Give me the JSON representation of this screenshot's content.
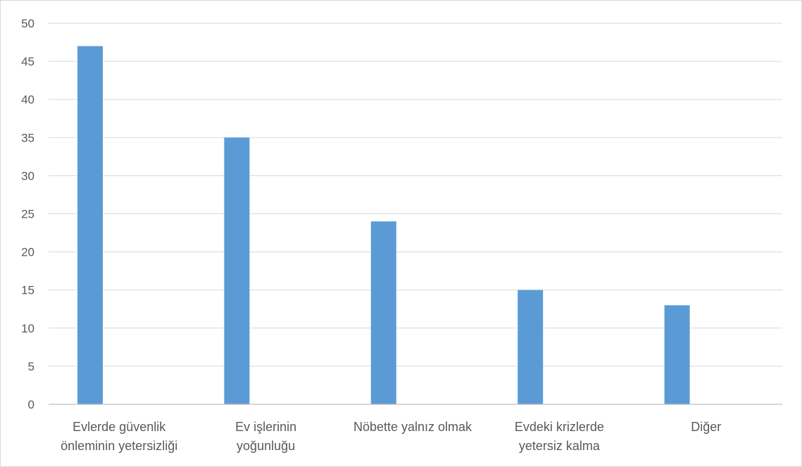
{
  "chart_data": {
    "type": "bar",
    "title": "",
    "xlabel": "",
    "ylabel": "",
    "ylim": [
      0,
      50
    ],
    "yticks": [
      0,
      5,
      10,
      15,
      20,
      25,
      30,
      35,
      40,
      45,
      50
    ],
    "grid": true,
    "legend": "none",
    "categories": [
      [
        "Evlerde güvenlik",
        "önleminin yetersizliği"
      ],
      [
        "Ev işlerinin",
        "yoğunluğu"
      ],
      [
        "Nöbette yalnız olmak"
      ],
      [
        "Evdeki krizlerde",
        "yetersiz kalma"
      ],
      [
        "Diğer"
      ]
    ],
    "values": [
      47,
      35,
      24,
      15,
      13
    ],
    "bar_color": "#5b9bd5"
  }
}
